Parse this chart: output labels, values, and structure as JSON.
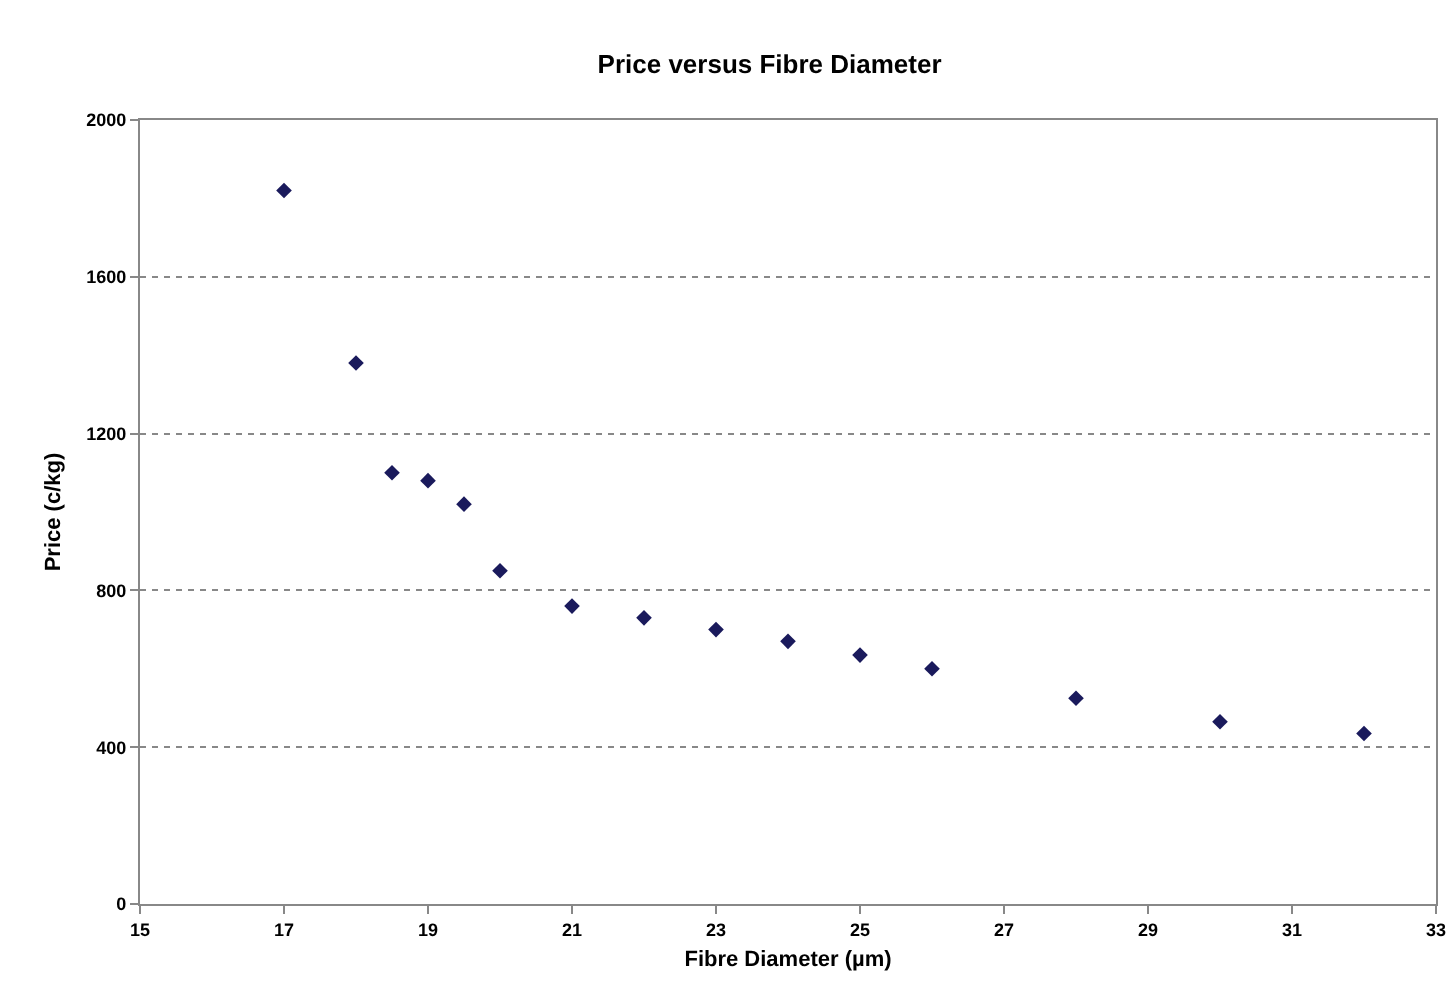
{
  "chart_data": {
    "type": "scatter",
    "title": "Price versus Fibre Diameter",
    "xlabel": "Fibre Diameter (µm)",
    "ylabel": "Price (c/kg)",
    "x": [
      17,
      18,
      18.5,
      19,
      19.5,
      20,
      21,
      22,
      23,
      24,
      25,
      26,
      28,
      30,
      32
    ],
    "series": [
      {
        "color": "#1a1a5c",
        "values": [
          1820,
          1380,
          1100,
          1080,
          1020,
          850,
          760,
          730,
          700,
          670,
          635,
          600,
          525,
          465,
          435
        ]
      }
    ],
    "xlim": [
      15,
      33
    ],
    "xticks": [
      15,
      17,
      19,
      21,
      23,
      25,
      27,
      29,
      31,
      33
    ],
    "ylim": [
      0,
      2000
    ],
    "yticks": [
      0,
      400,
      800,
      1200,
      1600,
      2000
    ],
    "grid": "y",
    "marker": "diamond",
    "legend": false
  }
}
